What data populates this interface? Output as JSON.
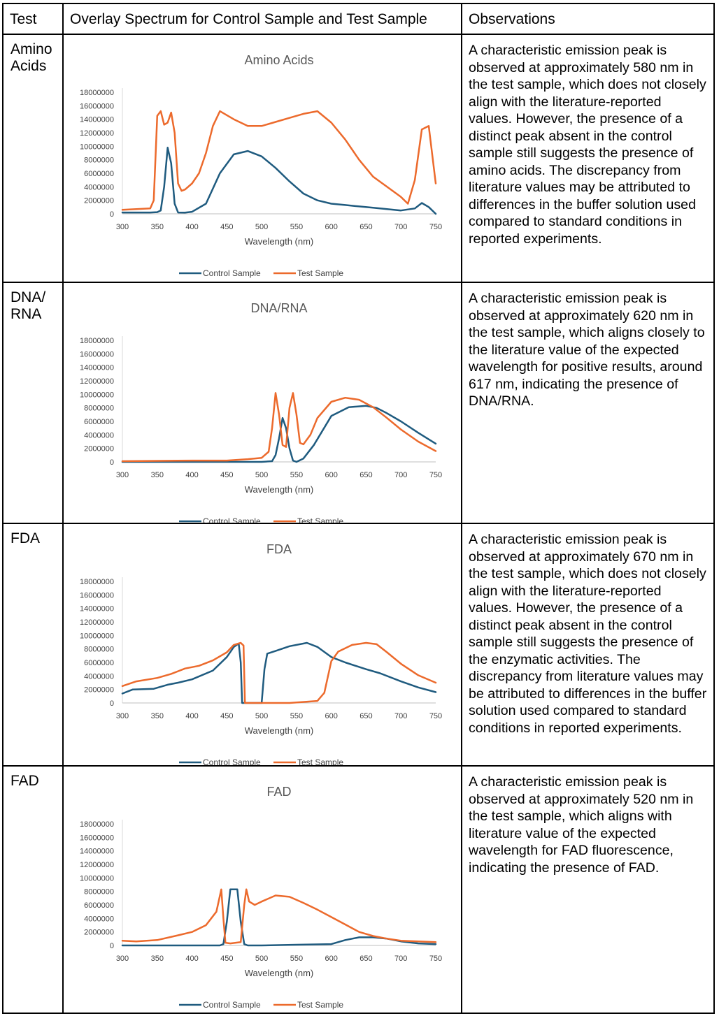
{
  "header": {
    "test": "Test",
    "spectrum": "Overlay Spectrum for Control Sample and Test Sample",
    "observations": "Observations"
  },
  "rows": [
    {
      "test": "Amino Acids",
      "observation": "A characteristic emission peak is observed at approximately 580 nm in the test sample, which does not closely align with the literature-reported values. However, the presence of a distinct peak absent in the control sample still suggests the presence of amino acids. The discrepancy from literature values may be attributed to differences in the buffer solution used compared to standard conditions in reported experiments."
    },
    {
      "test": "DNA/ RNA",
      "observation": "A characteristic emission peak is observed at approximately 620 nm in the test sample, which aligns closely to the literature value of the expected wavelength for positive results, around 617 nm, indicating the presence of DNA/RNA."
    },
    {
      "test": "FDA",
      "observation": "A characteristic emission peak is observed at approximately 670 nm in the test sample, which does not closely align with the literature-reported values. However, the presence of a distinct peak absent in the control sample still suggests the presence of the enzymatic activities. The discrepancy from literature values may be attributed to differences in the buffer solution used compared to standard conditions in reported experiments."
    },
    {
      "test": "FAD",
      "observation": "A characteristic emission peak is observed at approximately 520 nm in the test sample, which aligns with literature value of the expected wavelength for FAD fluorescence, indicating the presence of FAD."
    }
  ],
  "chart_colors": {
    "control": "#1f5b7f",
    "test": "#ec6a2c"
  },
  "chart_data": [
    {
      "type": "line",
      "title": "Amino Acids",
      "xlabel": "Wavelength (nm)",
      "ylabel": "",
      "xlim": [
        300,
        750
      ],
      "ylim": [
        0,
        18000000
      ],
      "xticks": [
        300,
        350,
        400,
        450,
        500,
        550,
        600,
        650,
        700,
        750
      ],
      "yticks": [
        0,
        2000000,
        4000000,
        6000000,
        8000000,
        10000000,
        12000000,
        14000000,
        16000000,
        18000000
      ],
      "legend_position": "bottom",
      "series": [
        {
          "name": "Control Sample",
          "x": [
            300,
            340,
            350,
            355,
            360,
            365,
            370,
            375,
            380,
            390,
            400,
            420,
            440,
            460,
            480,
            500,
            520,
            540,
            560,
            580,
            600,
            620,
            640,
            660,
            680,
            700,
            720,
            730,
            740,
            750
          ],
          "y": [
            200000,
            200000,
            250000,
            500000,
            4000000,
            9800000,
            7500000,
            1500000,
            200000,
            180000,
            300000,
            1500000,
            6000000,
            8800000,
            9300000,
            8500000,
            6800000,
            4800000,
            3000000,
            2000000,
            1500000,
            1300000,
            1100000,
            900000,
            700000,
            500000,
            800000,
            1600000,
            1000000,
            0
          ]
        },
        {
          "name": "Test Sample",
          "x": [
            300,
            340,
            345,
            350,
            355,
            360,
            365,
            370,
            375,
            380,
            385,
            390,
            400,
            410,
            420,
            430,
            440,
            460,
            480,
            500,
            520,
            540,
            560,
            580,
            600,
            620,
            640,
            660,
            680,
            700,
            710,
            720,
            730,
            740,
            750
          ],
          "y": [
            600000,
            800000,
            2000000,
            14500000,
            15200000,
            13200000,
            13500000,
            15000000,
            12000000,
            4500000,
            3400000,
            3600000,
            4500000,
            6000000,
            9000000,
            13000000,
            15200000,
            14000000,
            13000000,
            13000000,
            13600000,
            14200000,
            14800000,
            15200000,
            13500000,
            11000000,
            8000000,
            5500000,
            4000000,
            2500000,
            1500000,
            5000000,
            12500000,
            13000000,
            4500000
          ]
        }
      ]
    },
    {
      "type": "line",
      "title": "DNA/RNA",
      "xlabel": "Wavelength (nm)",
      "ylabel": "",
      "xlim": [
        300,
        750
      ],
      "ylim": [
        0,
        18000000
      ],
      "xticks": [
        300,
        350,
        400,
        450,
        500,
        550,
        600,
        650,
        700,
        750
      ],
      "yticks": [
        0,
        2000000,
        4000000,
        6000000,
        8000000,
        10000000,
        12000000,
        14000000,
        16000000,
        18000000
      ],
      "legend_position": "bottom",
      "series": [
        {
          "name": "Control Sample",
          "x": [
            300,
            400,
            500,
            515,
            520,
            525,
            530,
            535,
            540,
            545,
            550,
            560,
            575,
            600,
            625,
            650,
            665,
            680,
            700,
            725,
            750
          ],
          "y": [
            0,
            0,
            0,
            100000,
            1000000,
            3500000,
            6500000,
            5000000,
            2000000,
            200000,
            0,
            500000,
            2500000,
            6800000,
            8100000,
            8300000,
            8000000,
            7200000,
            6000000,
            4300000,
            2700000
          ]
        },
        {
          "name": "Test Sample",
          "x": [
            300,
            400,
            450,
            480,
            500,
            510,
            515,
            520,
            525,
            530,
            535,
            540,
            545,
            550,
            555,
            560,
            570,
            580,
            600,
            620,
            640,
            660,
            680,
            700,
            725,
            750
          ],
          "y": [
            100000,
            200000,
            200000,
            400000,
            600000,
            1500000,
            5000000,
            10200000,
            7000000,
            2500000,
            2200000,
            8000000,
            10200000,
            7000000,
            2800000,
            2600000,
            4000000,
            6500000,
            8900000,
            9500000,
            9200000,
            8100000,
            6500000,
            4800000,
            3000000,
            1600000
          ]
        }
      ]
    },
    {
      "type": "line",
      "title": "FDA",
      "xlabel": "Wavelength (nm)",
      "ylabel": "",
      "xlim": [
        300,
        750
      ],
      "ylim": [
        0,
        18000000
      ],
      "xticks": [
        300,
        350,
        400,
        450,
        500,
        550,
        600,
        650,
        700,
        750
      ],
      "yticks": [
        0,
        2000000,
        4000000,
        6000000,
        8000000,
        10000000,
        12000000,
        14000000,
        16000000,
        18000000
      ],
      "legend_position": "bottom",
      "series": [
        {
          "name": "Control Sample",
          "x": [
            300,
            315,
            345,
            365,
            380,
            400,
            430,
            450,
            460,
            467,
            470,
            472,
            500,
            504,
            508,
            520,
            540,
            565,
            580,
            600,
            620,
            650,
            670,
            700,
            725,
            750
          ],
          "y": [
            1400000,
            2000000,
            2100000,
            2700000,
            3000000,
            3500000,
            4800000,
            6800000,
            8300000,
            8800000,
            6000000,
            0,
            0,
            5000000,
            7300000,
            7700000,
            8400000,
            8900000,
            8300000,
            6800000,
            6000000,
            5000000,
            4400000,
            3200000,
            2300000,
            1600000
          ]
        },
        {
          "name": "Test Sample",
          "x": [
            300,
            320,
            350,
            370,
            390,
            410,
            430,
            450,
            460,
            470,
            474,
            476,
            500,
            540,
            580,
            590,
            600,
            610,
            630,
            650,
            665,
            680,
            700,
            725,
            750
          ],
          "y": [
            2500000,
            3200000,
            3700000,
            4300000,
            5100000,
            5500000,
            6300000,
            7500000,
            8600000,
            8900000,
            8500000,
            0,
            0,
            0,
            300000,
            1500000,
            6200000,
            7600000,
            8600000,
            8900000,
            8700000,
            7500000,
            5800000,
            4100000,
            3000000
          ]
        }
      ]
    },
    {
      "type": "line",
      "title": "FAD",
      "xlabel": "Wavelength (nm)",
      "ylabel": "",
      "xlim": [
        300,
        750
      ],
      "ylim": [
        0,
        18000000
      ],
      "xticks": [
        300,
        350,
        400,
        450,
        500,
        550,
        600,
        650,
        700,
        750
      ],
      "yticks": [
        0,
        2000000,
        4000000,
        6000000,
        8000000,
        10000000,
        12000000,
        14000000,
        16000000,
        18000000
      ],
      "legend_position": "bottom",
      "series": [
        {
          "name": "Control Sample",
          "x": [
            300,
            440,
            445,
            450,
            455,
            465,
            470,
            475,
            480,
            500,
            550,
            600,
            620,
            640,
            660,
            680,
            700,
            725,
            750
          ],
          "y": [
            0,
            0,
            200000,
            3500000,
            8300000,
            8300000,
            3500000,
            200000,
            0,
            0,
            100000,
            200000,
            800000,
            1200000,
            1200000,
            1000000,
            600000,
            300000,
            200000
          ]
        },
        {
          "name": "Test Sample",
          "x": [
            300,
            320,
            350,
            380,
            400,
            420,
            435,
            442,
            445,
            448,
            455,
            470,
            475,
            478,
            482,
            490,
            500,
            520,
            540,
            560,
            580,
            600,
            620,
            640,
            660,
            680,
            700,
            725,
            750
          ],
          "y": [
            700000,
            600000,
            800000,
            1500000,
            2000000,
            3000000,
            5000000,
            8300000,
            4000000,
            400000,
            300000,
            500000,
            6000000,
            8300000,
            6500000,
            6000000,
            6500000,
            7400000,
            7200000,
            6300000,
            5300000,
            4200000,
            3100000,
            2000000,
            1400000,
            1000000,
            700000,
            600000,
            500000
          ]
        }
      ]
    }
  ]
}
